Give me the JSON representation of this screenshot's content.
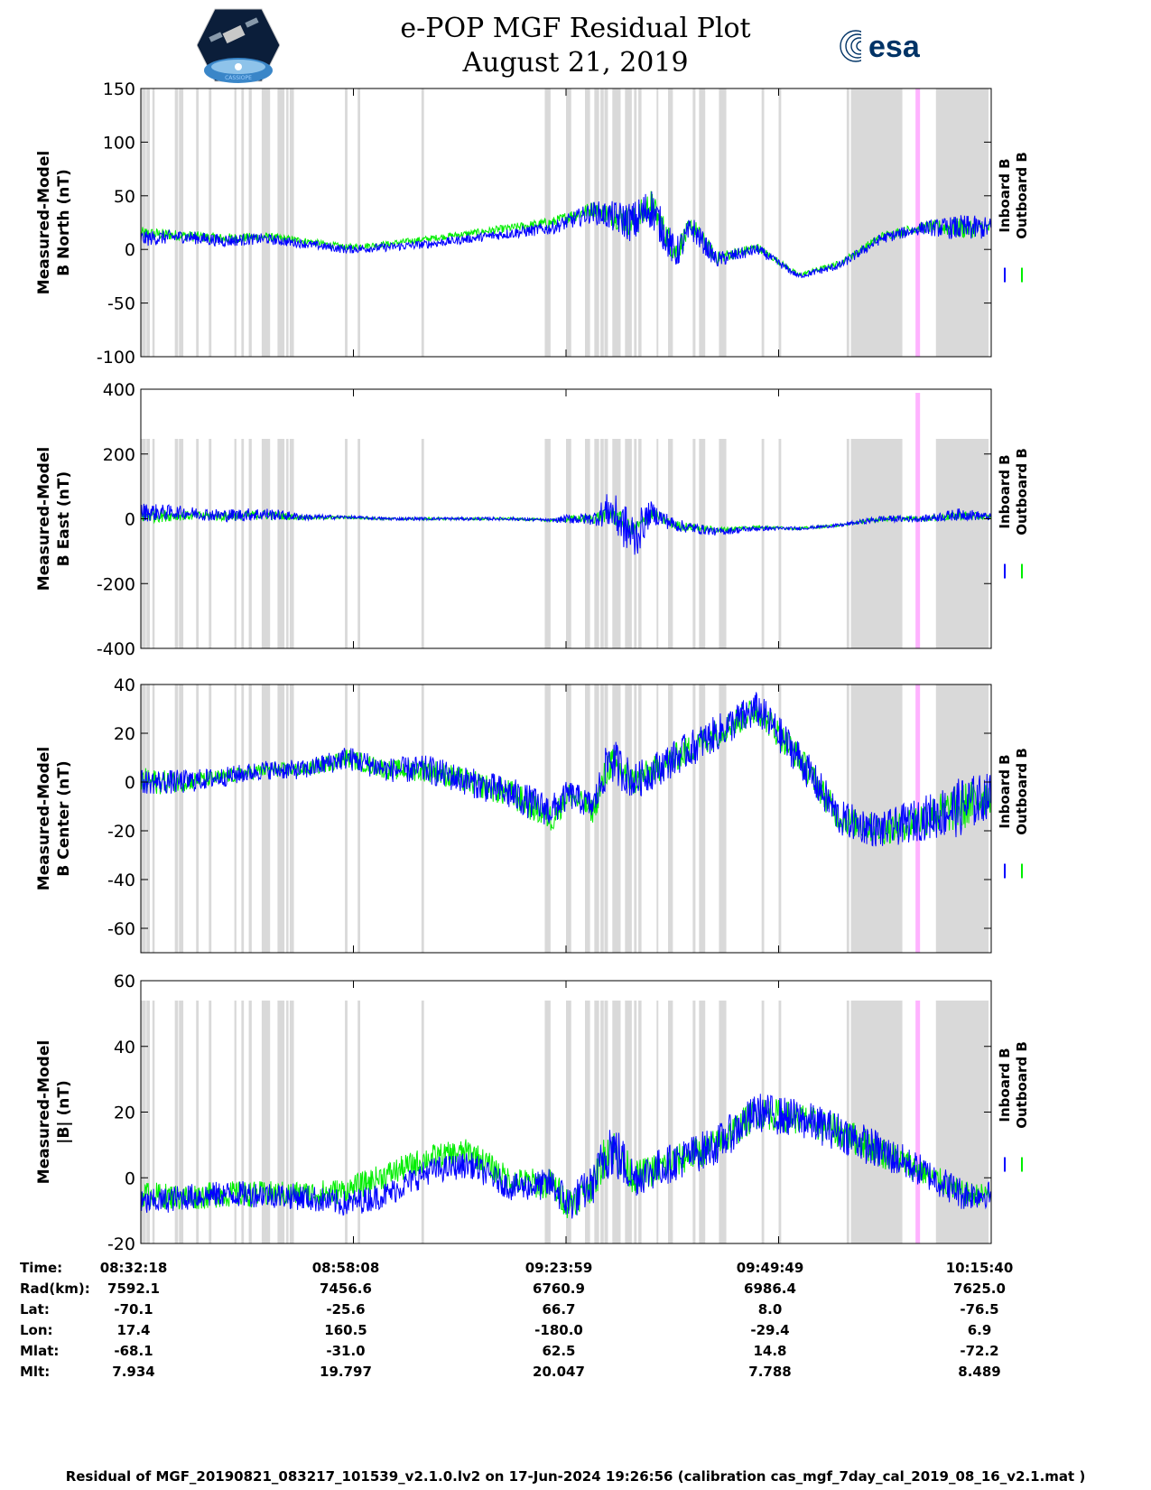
{
  "header": {
    "title_line1": "e-POP MGF Residual Plot",
    "title_line2": "August 21, 2019",
    "left_logo": "cassiope-mission-logo",
    "left_logo_caption": "CASSIOPE",
    "right_logo_text": "esa"
  },
  "chart_data": [
    {
      "type": "line",
      "panel": "B North",
      "ylabel_line1": "Measured-Model",
      "ylabel_line2": "B North (nT)",
      "ylim": [
        -100,
        150
      ],
      "yticks": [
        -100,
        -50,
        0,
        50,
        100,
        150
      ],
      "legend": [
        "Inboard B",
        "Outboard B"
      ],
      "legend_colors": [
        "#0000ff",
        "#00ee00"
      ],
      "x_minutes": [
        0,
        5,
        10,
        15,
        20,
        25,
        30,
        35,
        40,
        45,
        50,
        55,
        60,
        62,
        65,
        67,
        70,
        75,
        80,
        85,
        90,
        95,
        100,
        103.4
      ],
      "series": [
        {
          "name": "Inboard B",
          "color": "#0000ff",
          "values": [
            10,
            12,
            8,
            10,
            5,
            0,
            2,
            5,
            10,
            15,
            20,
            35,
            25,
            40,
            -5,
            20,
            -10,
            0,
            -25,
            -15,
            10,
            20,
            20,
            20
          ],
          "amplitude": [
            15,
            12,
            12,
            10,
            8,
            8,
            8,
            8,
            8,
            10,
            12,
            20,
            40,
            40,
            30,
            25,
            15,
            10,
            5,
            8,
            10,
            12,
            25,
            20
          ]
        },
        {
          "name": "Outboard B",
          "color": "#00ee00",
          "values": [
            15,
            13,
            10,
            12,
            8,
            2,
            5,
            10,
            15,
            20,
            25,
            38,
            25,
            42,
            -3,
            22,
            -8,
            2,
            -24,
            -13,
            12,
            21,
            20,
            20
          ],
          "amplitude": [
            12,
            10,
            10,
            8,
            6,
            6,
            6,
            6,
            6,
            8,
            10,
            15,
            30,
            30,
            25,
            20,
            12,
            8,
            4,
            6,
            8,
            10,
            20,
            15
          ]
        }
      ]
    },
    {
      "type": "line",
      "panel": "B East",
      "ylabel_line1": "Measured-Model",
      "ylabel_line2": "B East (nT)",
      "ylim": [
        -400,
        400
      ],
      "yticks": [
        -400,
        -200,
        0,
        200,
        400
      ],
      "legend": [
        "Inboard B",
        "Outboard B"
      ],
      "legend_colors": [
        "#0000ff",
        "#00ee00"
      ],
      "x_minutes": [
        0,
        5,
        10,
        15,
        20,
        25,
        30,
        35,
        40,
        45,
        50,
        52,
        55,
        57,
        60,
        62,
        65,
        70,
        75,
        80,
        85,
        90,
        95,
        100,
        103.4
      ],
      "series": [
        {
          "name": "Inboard B",
          "color": "#0000ff",
          "values": [
            20,
            20,
            10,
            15,
            5,
            5,
            0,
            0,
            0,
            0,
            -5,
            0,
            0,
            30,
            -60,
            20,
            -20,
            -40,
            -30,
            -30,
            -20,
            0,
            0,
            15,
            5
          ],
          "amplitude": [
            60,
            40,
            40,
            40,
            20,
            10,
            10,
            10,
            10,
            10,
            10,
            30,
            40,
            120,
            160,
            70,
            40,
            25,
            15,
            10,
            10,
            20,
            20,
            40,
            20
          ]
        },
        {
          "name": "Outboard B",
          "color": "#00ee00",
          "values": [
            10,
            10,
            8,
            12,
            4,
            4,
            0,
            0,
            0,
            0,
            -5,
            0,
            0,
            20,
            -40,
            15,
            -20,
            -35,
            -25,
            -30,
            -20,
            0,
            0,
            10,
            5
          ],
          "amplitude": [
            50,
            30,
            30,
            30,
            15,
            8,
            8,
            8,
            8,
            8,
            8,
            20,
            30,
            60,
            60,
            40,
            30,
            20,
            10,
            8,
            8,
            15,
            15,
            30,
            15
          ]
        }
      ]
    },
    {
      "type": "line",
      "panel": "B Center",
      "ylabel_line1": "Measured-Model",
      "ylabel_line2": "B Center (nT)",
      "ylim": [
        -70,
        40
      ],
      "yticks": [
        -60,
        -40,
        -20,
        0,
        20,
        40
      ],
      "legend": [
        "Inboard B",
        "Outboard B"
      ],
      "legend_colors": [
        "#0000ff",
        "#00ee00"
      ],
      "x_minutes": [
        0,
        5,
        10,
        15,
        20,
        25,
        30,
        35,
        40,
        45,
        50,
        52,
        55,
        57,
        60,
        65,
        70,
        75,
        80,
        85,
        90,
        95,
        100,
        103.4
      ],
      "series": [
        {
          "name": "Inboard B",
          "color": "#0000ff",
          "values": [
            0,
            0,
            2,
            5,
            5,
            10,
            5,
            5,
            0,
            -5,
            -12,
            -5,
            -10,
            10,
            0,
            10,
            20,
            30,
            10,
            -15,
            -20,
            -15,
            -10,
            -5
          ],
          "amplitude": [
            10,
            10,
            8,
            8,
            8,
            10,
            10,
            12,
            12,
            14,
            14,
            12,
            12,
            20,
            15,
            15,
            15,
            15,
            15,
            15,
            15,
            18,
            25,
            18
          ]
        },
        {
          "name": "Outboard B",
          "color": "#00ee00",
          "values": [
            0,
            0,
            2,
            5,
            5,
            10,
            5,
            5,
            0,
            -5,
            -15,
            -5,
            -12,
            8,
            0,
            10,
            20,
            30,
            10,
            -15,
            -20,
            -15,
            -10,
            -5
          ],
          "amplitude": [
            12,
            8,
            6,
            6,
            6,
            8,
            8,
            10,
            10,
            12,
            12,
            10,
            10,
            15,
            12,
            12,
            12,
            12,
            12,
            12,
            12,
            15,
            20,
            15
          ]
        }
      ]
    },
    {
      "type": "line",
      "panel": "|B|",
      "ylabel_line1": "Measured-Model",
      "ylabel_line2": "|B| (nT)",
      "ylim": [
        -20,
        60
      ],
      "yticks": [
        -20,
        0,
        20,
        40,
        60
      ],
      "legend": [
        "Inboard B",
        "Outboard B"
      ],
      "legend_colors": [
        "#0000ff",
        "#00ee00"
      ],
      "x_minutes": [
        0,
        5,
        10,
        15,
        20,
        25,
        30,
        35,
        40,
        45,
        50,
        52,
        55,
        57,
        60,
        65,
        70,
        75,
        80,
        85,
        90,
        95,
        100,
        103.4
      ],
      "series": [
        {
          "name": "Inboard B",
          "color": "#0000ff",
          "values": [
            -8,
            -6,
            -5,
            -5,
            -6,
            -8,
            -5,
            2,
            4,
            -3,
            -2,
            -8,
            -2,
            10,
            0,
            5,
            10,
            20,
            18,
            14,
            8,
            2,
            -5,
            -5
          ],
          "amplitude": [
            8,
            8,
            8,
            8,
            8,
            8,
            8,
            8,
            8,
            8,
            10,
            12,
            12,
            20,
            12,
            12,
            12,
            12,
            12,
            12,
            12,
            10,
            10,
            8
          ]
        },
        {
          "name": "Outboard B",
          "color": "#00ee00",
          "values": [
            -5,
            -6,
            -5,
            -5,
            -5,
            -4,
            1,
            6,
            8,
            -1,
            -2,
            -8,
            -2,
            10,
            0,
            5,
            10,
            20,
            18,
            14,
            8,
            2,
            -5,
            -5
          ],
          "amplitude": [
            8,
            8,
            8,
            8,
            8,
            8,
            8,
            8,
            8,
            8,
            10,
            10,
            10,
            15,
            10,
            10,
            10,
            10,
            10,
            10,
            10,
            8,
            8,
            6
          ]
        }
      ]
    }
  ],
  "info_table": {
    "labels": [
      "Time:",
      "Rad(km):",
      "Lat:",
      "Lon:",
      "Mlat:",
      "Mlt:"
    ],
    "columns": [
      [
        "08:32:18",
        "7592.1",
        "-70.1",
        "17.4",
        "-68.1",
        "7.934"
      ],
      [
        "08:58:08",
        "7456.6",
        "-25.6",
        "160.5",
        "-31.0",
        "19.797"
      ],
      [
        "09:23:59",
        "6760.9",
        "66.7",
        "-180.0",
        "62.5",
        "20.047"
      ],
      [
        "09:49:49",
        "6986.4",
        "8.0",
        "-29.4",
        "14.8",
        "7.788"
      ],
      [
        "10:15:40",
        "7625.0",
        "-76.5",
        "6.9",
        "-72.2",
        "8.489"
      ]
    ]
  },
  "footer": {
    "text": "Residual of MGF_20190821_083217_101539_v2.1.0.lv2 on 17-Jun-2024 19:26:56 (calibration cas_mgf_7day_cal_2019_08_16_v2.1.mat )"
  },
  "colors": {
    "inboard": "#0000ff",
    "outboard": "#00ee00",
    "flag_band": "#d9d9d9",
    "pink_band": "#ffb3ff"
  }
}
